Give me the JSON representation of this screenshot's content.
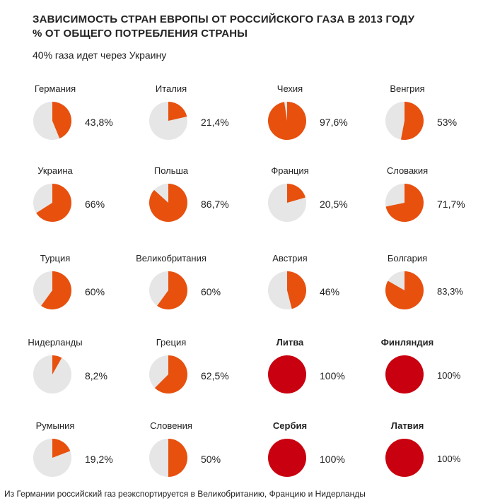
{
  "header": {
    "title_line1": "ЗАВИСИМОСТЬ СТРАН ЕВРОПЫ ОТ РОССИЙСКОГО ГАЗА В 2013 ГОДУ",
    "title_line2": "% ОТ ОБЩЕГО ПОТРЕБЛЕНИЯ СТРАНЫ",
    "subtitle": "40% газа идет через Украину"
  },
  "footnote": "Из Германии российский газ реэкспортируется в Великобританию, Францию и Нидерланды",
  "colors": {
    "orange": "#e8500e",
    "red": "#c8000f",
    "grey": "#e6e6e6"
  },
  "chart_data": {
    "type": "pie",
    "layout": "small-multiples",
    "grid": false,
    "items": [
      {
        "country": "Германия",
        "value": 43.8,
        "label": "43,8%",
        "color": "orange",
        "bold": false
      },
      {
        "country": "Италия",
        "value": 21.4,
        "label": "21,4%",
        "color": "orange",
        "bold": false
      },
      {
        "country": "Чехия",
        "value": 97.6,
        "label": "97,6%",
        "color": "orange",
        "bold": false
      },
      {
        "country": "Венгрия",
        "value": 53,
        "label": "53%",
        "color": "orange",
        "bold": false
      },
      {
        "country": "Украина",
        "value": 66,
        "label": "66%",
        "color": "orange",
        "bold": false
      },
      {
        "country": "Польша",
        "value": 86.7,
        "label": "86,7%",
        "color": "orange",
        "bold": false
      },
      {
        "country": "Франция",
        "value": 20.5,
        "label": "20,5%",
        "color": "orange",
        "bold": false
      },
      {
        "country": "Словакия",
        "value": 71.7,
        "label": "71,7%",
        "color": "orange",
        "bold": false
      },
      {
        "country": "Турция",
        "value": 60,
        "label": "60%",
        "color": "orange",
        "bold": false
      },
      {
        "country": "Великобритания",
        "value": 60,
        "label": "60%",
        "color": "orange",
        "bold": false
      },
      {
        "country": "Австрия",
        "value": 46,
        "label": "46%",
        "color": "orange",
        "bold": false
      },
      {
        "country": "Болгария",
        "value": 83.3,
        "label": "83,3%",
        "color": "orange",
        "bold": false
      },
      {
        "country": "Нидерланды",
        "value": 8.2,
        "label": "8,2%",
        "color": "orange",
        "bold": false
      },
      {
        "country": "Греция",
        "value": 62.5,
        "label": "62,5%",
        "color": "orange",
        "bold": false
      },
      {
        "country": "Литва",
        "value": 100,
        "label": "100%",
        "color": "red",
        "bold": true
      },
      {
        "country": "Финляндия",
        "value": 100,
        "label": "100%",
        "color": "red",
        "bold": true
      },
      {
        "country": "Румыния",
        "value": 19.2,
        "label": "19,2%",
        "color": "orange",
        "bold": false
      },
      {
        "country": "Словения",
        "value": 50,
        "label": "50%",
        "color": "orange",
        "bold": false
      },
      {
        "country": "Сербия",
        "value": 100,
        "label": "100%",
        "color": "red",
        "bold": true
      },
      {
        "country": "Латвия",
        "value": 100,
        "label": "100%",
        "color": "red",
        "bold": true
      }
    ]
  }
}
